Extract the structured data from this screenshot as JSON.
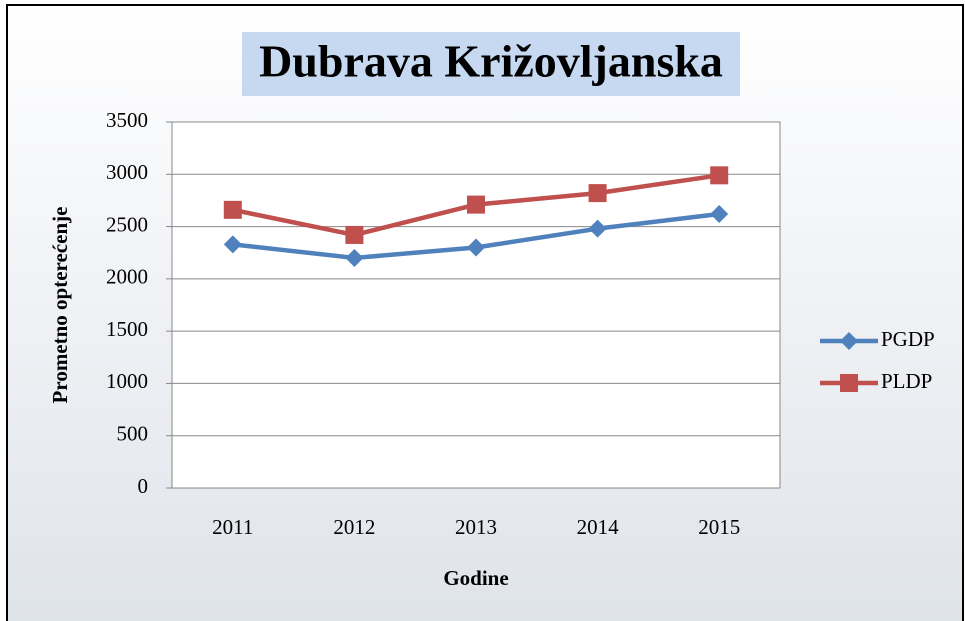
{
  "chart_data": {
    "type": "line",
    "title": "Dubrava Križovljanska",
    "x_label": "Godine",
    "y_label": "Prometno opterećenje",
    "categories": [
      "2011",
      "2012",
      "2013",
      "2014",
      "2015"
    ],
    "series": [
      {
        "name": "PGDP",
        "color": "#4f81bd",
        "marker": "diamond",
        "values": [
          2330,
          2200,
          2300,
          2480,
          2620
        ]
      },
      {
        "name": "PLDP",
        "color": "#c0504d",
        "marker": "square",
        "values": [
          2660,
          2420,
          2710,
          2820,
          2990
        ]
      }
    ],
    "ylim": [
      0,
      3500
    ],
    "yticks": [
      0,
      500,
      1000,
      1500,
      2000,
      2500,
      3000,
      3500
    ],
    "grid": true,
    "legend": "right"
  }
}
